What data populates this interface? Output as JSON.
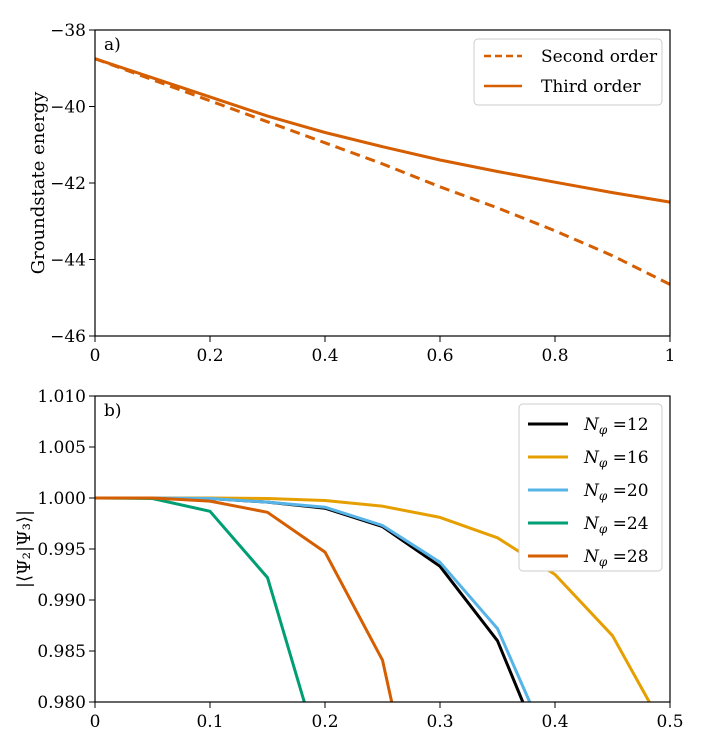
{
  "chart_data": [
    {
      "type": "line",
      "panel_label": "a)",
      "title": "",
      "xlabel": "",
      "ylabel": "Groundstate energy",
      "xlim": [
        0,
        1
      ],
      "ylim": [
        -46,
        -38
      ],
      "xticks": [
        0,
        0.2,
        0.4,
        0.6,
        0.8,
        1
      ],
      "xtick_labels": [
        "0",
        "0.2",
        "0.4",
        "0.6",
        "0.8",
        "1"
      ],
      "yticks": [
        -46,
        -44,
        -42,
        -40,
        -38
      ],
      "ytick_labels": [
        "−46",
        "−44",
        "−42",
        "−40",
        "−38"
      ],
      "legend_position": "top-right",
      "series": [
        {
          "name": "Second order",
          "style": "dashed",
          "color": "#d55e00",
          "x": [
            0,
            0.1,
            0.2,
            0.3,
            0.4,
            0.5,
            0.6,
            0.7,
            0.8,
            0.9,
            1.0
          ],
          "y": [
            -38.75,
            -39.3,
            -39.85,
            -40.4,
            -40.95,
            -41.5,
            -42.1,
            -42.65,
            -43.25,
            -43.9,
            -44.65
          ]
        },
        {
          "name": "Third order",
          "style": "solid",
          "color": "#d55e00",
          "x": [
            0,
            0.1,
            0.2,
            0.3,
            0.4,
            0.5,
            0.6,
            0.7,
            0.8,
            0.9,
            1.0
          ],
          "y": [
            -38.75,
            -39.25,
            -39.75,
            -40.25,
            -40.68,
            -41.05,
            -41.4,
            -41.7,
            -41.98,
            -42.25,
            -42.5
          ]
        }
      ]
    },
    {
      "type": "line",
      "panel_label": "b)",
      "title": "",
      "xlabel": "",
      "ylabel": "|⟨Ψ₂|Ψ₃⟩|",
      "xlim": [
        0,
        0.5
      ],
      "ylim": [
        0.98,
        1.01
      ],
      "xticks": [
        0,
        0.1,
        0.2,
        0.3,
        0.4,
        0.5
      ],
      "xtick_labels": [
        "0",
        "0.1",
        "0.2",
        "0.3",
        "0.4",
        "0.5"
      ],
      "yticks": [
        0.98,
        0.985,
        0.99,
        0.995,
        1.0,
        1.005,
        1.01
      ],
      "ytick_labels": [
        "0.980",
        "0.985",
        "0.990",
        "0.995",
        "1.000",
        "1.005",
        "1.010"
      ],
      "legend_position": "top-right",
      "series": [
        {
          "name": "Nφ =12",
          "symbol": "N",
          "subscript": "φ",
          "value_label": " =12",
          "color": "#000000",
          "x": [
            0,
            0.05,
            0.1,
            0.15,
            0.2,
            0.25,
            0.3,
            0.35,
            0.372
          ],
          "y": [
            1.0,
            1.0,
            0.99995,
            0.9996,
            0.999,
            0.9972,
            0.9933,
            0.986,
            0.98
          ]
        },
        {
          "name": "Nφ =16",
          "symbol": "N",
          "subscript": "φ",
          "value_label": " =16",
          "color": "#e69f00",
          "x": [
            0,
            0.05,
            0.1,
            0.15,
            0.2,
            0.25,
            0.3,
            0.35,
            0.4,
            0.45,
            0.482
          ],
          "y": [
            1.0,
            1.0,
            1.0,
            0.99995,
            0.99975,
            0.9992,
            0.9981,
            0.9961,
            0.9925,
            0.9865,
            0.98
          ]
        },
        {
          "name": "Nφ =20",
          "symbol": "N",
          "subscript": "φ",
          "value_label": " =20",
          "color": "#56b4e9",
          "x": [
            0,
            0.05,
            0.1,
            0.15,
            0.2,
            0.25,
            0.3,
            0.35,
            0.378
          ],
          "y": [
            1.0,
            1.0,
            0.99995,
            0.9996,
            0.9991,
            0.9973,
            0.9937,
            0.9872,
            0.98
          ]
        },
        {
          "name": "Nφ =24",
          "symbol": "N",
          "subscript": "φ",
          "value_label": " =24",
          "color": "#009e73",
          "x": [
            0,
            0.05,
            0.1,
            0.15,
            0.182
          ],
          "y": [
            1.0,
            0.99995,
            0.9987,
            0.9922,
            0.98
          ]
        },
        {
          "name": "Nφ =28",
          "symbol": "N",
          "subscript": "φ",
          "value_label": " =28",
          "color": "#d55e00",
          "x": [
            0,
            0.05,
            0.1,
            0.15,
            0.2,
            0.25,
            0.258
          ],
          "y": [
            1.0,
            1.0,
            0.9997,
            0.9986,
            0.9947,
            0.9841,
            0.98
          ]
        }
      ]
    }
  ]
}
